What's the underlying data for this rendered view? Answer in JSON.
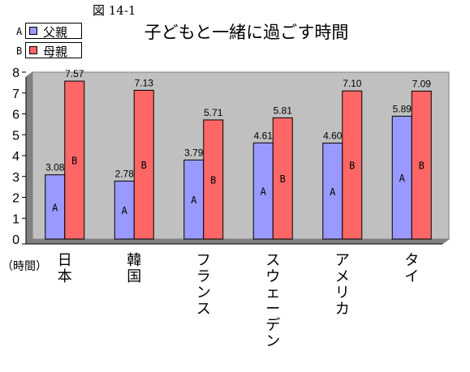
{
  "figure_label": "図 14-1",
  "unit_label": "（時間）",
  "colors": {
    "father": "#9999ff",
    "mother": "#ff6666",
    "plot_bg": "#c0c0c0"
  },
  "chart_data": {
    "type": "bar",
    "title": "子どもと一緒に過ごす時間",
    "categories": [
      "日本",
      "韓国",
      "フランス",
      "スウェーデン",
      "アメリカ",
      "タイ"
    ],
    "series": [
      {
        "name": "父親",
        "letter": "A",
        "values": [
          3.08,
          2.78,
          3.79,
          4.61,
          4.6,
          5.89
        ],
        "labels": [
          "3.08",
          "2.78",
          "3.79",
          "4.61",
          "4.60",
          "5.89"
        ]
      },
      {
        "name": "母親",
        "letter": "B",
        "values": [
          7.57,
          7.13,
          5.71,
          5.81,
          7.1,
          7.09
        ],
        "labels": [
          "7.57",
          "7.13",
          "5.71",
          "5.81",
          "7.10",
          "7.09"
        ]
      }
    ],
    "ylim": [
      0,
      8
    ],
    "yticks": [
      "0",
      "1",
      "2",
      "3",
      "4",
      "5",
      "6",
      "7",
      "8"
    ],
    "grid": false,
    "legend_position": "top-left"
  }
}
